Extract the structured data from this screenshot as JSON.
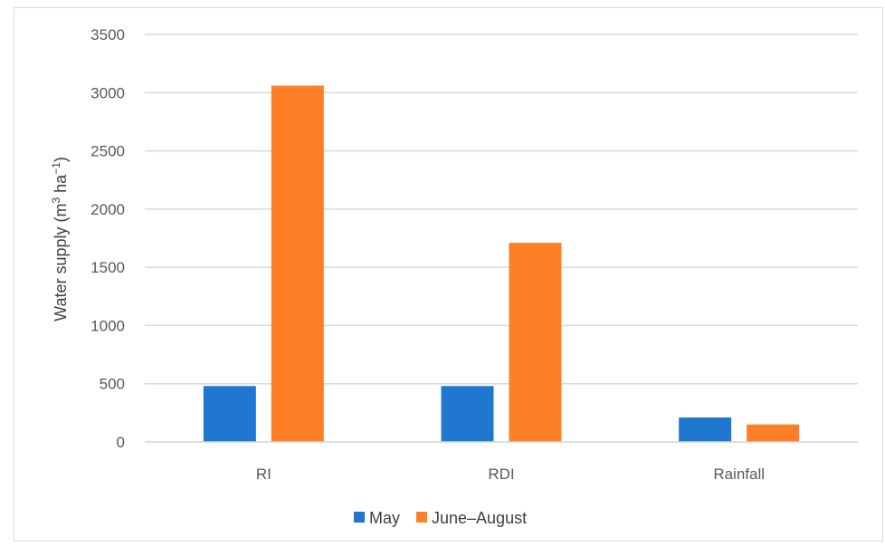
{
  "chart_data": {
    "type": "bar",
    "title": "",
    "xlabel": "",
    "ylabel": {
      "prefix": "Water supply (m",
      "sup1": "3",
      "middle": " ha",
      "sup2": "−1",
      "suffix": ")"
    },
    "categories": [
      "RI",
      "RDI",
      "Rainfall"
    ],
    "series": [
      {
        "name": "May",
        "color": "#1f77d0",
        "values": [
          480,
          480,
          210
        ]
      },
      {
        "name": "June–August",
        "color": "#ff7f27",
        "values": [
          3060,
          1710,
          150
        ]
      }
    ],
    "ylim": [
      0,
      3500
    ],
    "yticks": [
      "0",
      "500",
      "1000",
      "1500",
      "2000",
      "2500",
      "3000",
      "3500"
    ],
    "grid": true,
    "legend_position": "bottom"
  }
}
